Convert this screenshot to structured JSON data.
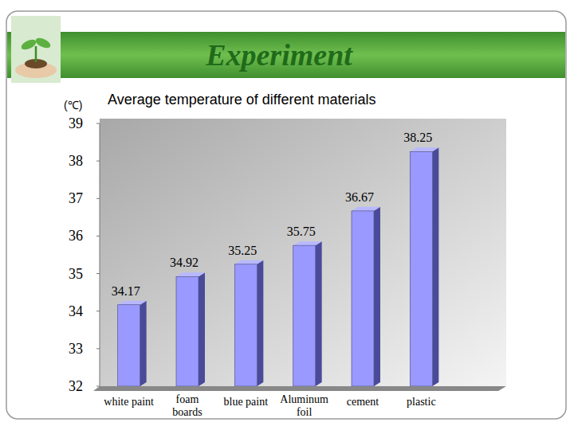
{
  "slide": {
    "title": "Experiment"
  },
  "chart_data": {
    "type": "bar",
    "title": "Average temperature of different materials",
    "y_label": "(℃)",
    "categories": [
      "white paint",
      "foam boards",
      "blue paint",
      "Aluminum foil",
      "cement",
      "plastic"
    ],
    "values": [
      34.17,
      34.92,
      35.25,
      35.75,
      36.67,
      38.25
    ],
    "color": "#9999ff",
    "ylim": [
      32,
      39
    ],
    "yticks": [
      32,
      33,
      34,
      35,
      36,
      37,
      38,
      39
    ],
    "grid": false,
    "data_labels": true
  }
}
